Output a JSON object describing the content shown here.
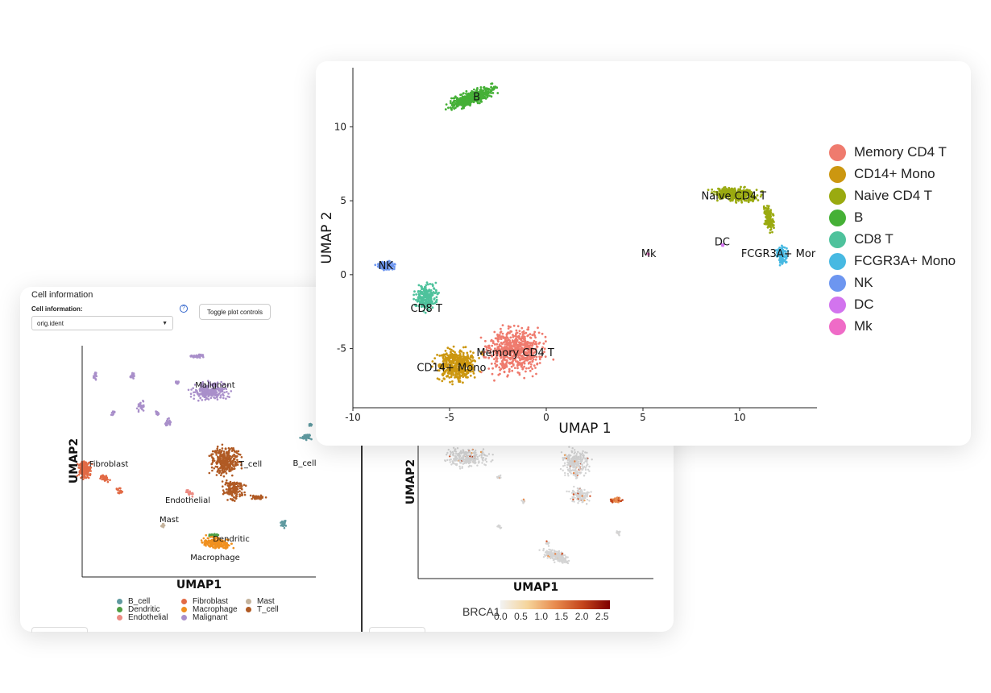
{
  "left_panel": {
    "title": "Cell information",
    "field_label": "Cell information:",
    "help_icon": "question-icon",
    "select_value": "orig.ident",
    "select_icon": "caret-down-icon",
    "toggle_button": "Toggle plot controls"
  },
  "colors": {
    "B_cell": "#5f9aa0",
    "Dendritic": "#4e9e44",
    "Endothelial": "#ec8b83",
    "Fibroblast": "#e26a45",
    "Macrophage": "#f0901f",
    "Malignant": "#a98fca",
    "Mast": "#c4b39d",
    "T_cell": "#b05a24",
    "Memory CD4 T": "#ef7b6e",
    "CD14+ Mono": "#cc9710",
    "Naive CD4 T": "#9aaa10",
    "B": "#45b036",
    "CD8 T": "#4ec29c",
    "FCGR3A+ Mono": "#47b9e2",
    "NK": "#6d96f0",
    "DC": "#d274ee",
    "Mk": "#ef6bc7"
  },
  "chart_data": [
    {
      "id": "left",
      "type": "scatter",
      "title": "",
      "xlabel": "UMAP1",
      "ylabel": "UMAP2",
      "clusters": [
        {
          "name": "Malignant",
          "label": "Malignant",
          "x": 7.5,
          "y": 8.3
        },
        {
          "name": "Fibroblast",
          "label": "Fibroblast",
          "x": 1.5,
          "y": 4.5
        },
        {
          "name": "T_cell",
          "label": "T_cell",
          "x": 6.9,
          "y": 4.4
        },
        {
          "name": "B_cell",
          "label": "B_cell",
          "x": 9.7,
          "y": 4.4
        },
        {
          "name": "Endothelial",
          "label": "Endothelial",
          "x": 4.5,
          "y": 2.8
        },
        {
          "name": "Mast",
          "label": "Mast",
          "x": 3.0,
          "y": 1.9
        },
        {
          "name": "Dendritic",
          "label": "Dendritic",
          "x": 6.0,
          "y": 1.2
        },
        {
          "name": "Macrophage",
          "label": "Macrophage",
          "x": 5.2,
          "y": 0.6
        }
      ],
      "legend": [
        "B_cell",
        "Dendritic",
        "Endothelial",
        "Fibroblast",
        "Macrophage",
        "Malignant",
        "Mast",
        "T_cell"
      ]
    },
    {
      "id": "middle",
      "type": "scatter",
      "title": "",
      "xlabel": "UMAP1",
      "ylabel": "UMAP2",
      "color_label": "BRCA1",
      "colorbar_ticks": [
        "0.0",
        "0.5",
        "1.0",
        "1.5",
        "2.0",
        "2.5"
      ],
      "colorbar_range": [
        0,
        2.7
      ]
    },
    {
      "id": "front",
      "type": "scatter",
      "title": "",
      "xlabel": "UMAP 1",
      "ylabel": "UMAP 2",
      "xlim": [
        -10,
        14
      ],
      "ylim": [
        -9,
        14
      ],
      "xticks": [
        "-10",
        "-5",
        "0",
        "5",
        "10"
      ],
      "yticks": [
        "-5",
        "0",
        "5",
        "10"
      ],
      "clusters": [
        {
          "name": "B",
          "label": "B",
          "x": -3.6,
          "y": 12.0
        },
        {
          "name": "Naive CD4 T",
          "label": "Naive CD4 T",
          "x": 9.7,
          "y": 5.3
        },
        {
          "name": "DC",
          "label": "DC",
          "x": 9.1,
          "y": 2.2
        },
        {
          "name": "Mk",
          "label": "Mk",
          "x": 5.3,
          "y": 1.4
        },
        {
          "name": "FCGR3A+ Mono",
          "label": "FCGR3A+ Mor",
          "x": 12.0,
          "y": 1.4
        },
        {
          "name": "NK",
          "label": "NK",
          "x": -8.3,
          "y": 0.6
        },
        {
          "name": "CD8 T",
          "label": "CD8 T",
          "x": -6.2,
          "y": -2.3
        },
        {
          "name": "Memory CD4 T",
          "label": "Memory CD4 T",
          "x": -1.6,
          "y": -5.3
        },
        {
          "name": "CD14+ Mono",
          "label": "CD14+ Mono",
          "x": -4.9,
          "y": -6.3
        }
      ],
      "legend": [
        "Memory CD4 T",
        "CD14+ Mono",
        "Naive CD4 T",
        "B",
        "CD8 T",
        "FCGR3A+ Mono",
        "NK",
        "DC",
        "Mk"
      ]
    }
  ]
}
